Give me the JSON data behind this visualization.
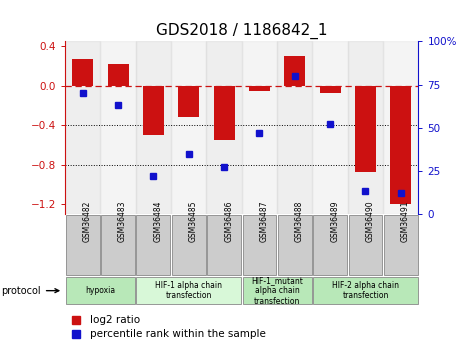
{
  "title": "GDS2018 / 1186842_1",
  "samples": [
    "GSM36482",
    "GSM36483",
    "GSM36484",
    "GSM36485",
    "GSM36486",
    "GSM36487",
    "GSM36488",
    "GSM36489",
    "GSM36490",
    "GSM36491"
  ],
  "log2_ratio": [
    0.27,
    0.22,
    -0.5,
    -0.32,
    -0.55,
    -0.05,
    0.3,
    -0.07,
    -0.87,
    -1.2
  ],
  "percentile_rank": [
    70,
    63,
    22,
    35,
    27,
    47,
    80,
    52,
    13,
    12
  ],
  "bar_color": "#cc1111",
  "dot_color": "#1111cc",
  "ylim_left": [
    -1.3,
    0.45
  ],
  "ylim_right": [
    0,
    100
  ],
  "yticks_left": [
    0.4,
    0.0,
    -0.4,
    -0.8,
    -1.2
  ],
  "yticks_right": [
    100,
    75,
    50,
    25,
    0
  ],
  "hline_y": 0.0,
  "dotted_lines": [
    -0.4,
    -0.8
  ],
  "protocol_groups": [
    {
      "label": "hypoxia",
      "start": 0,
      "end": 1,
      "color": "#b8e8b8"
    },
    {
      "label": "HIF-1 alpha chain\ntransfection",
      "start": 2,
      "end": 4,
      "color": "#d8f8d8"
    },
    {
      "label": "HIF-1_mutant\nalpha chain\ntransfection",
      "start": 5,
      "end": 6,
      "color": "#b8e8b8"
    },
    {
      "label": "HIF-2 alpha chain\ntransfection",
      "start": 7,
      "end": 9,
      "color": "#b8e8b8"
    }
  ],
  "legend_log2_label": "log2 ratio",
  "legend_pct_label": "percentile rank within the sample",
  "title_fontsize": 11,
  "tick_fontsize": 7.5,
  "bar_width": 0.6,
  "fig_bg": "#ffffff",
  "plot_bg": "#ffffff",
  "xtick_box_color": "#cccccc",
  "xtick_box_edge": "#888888"
}
